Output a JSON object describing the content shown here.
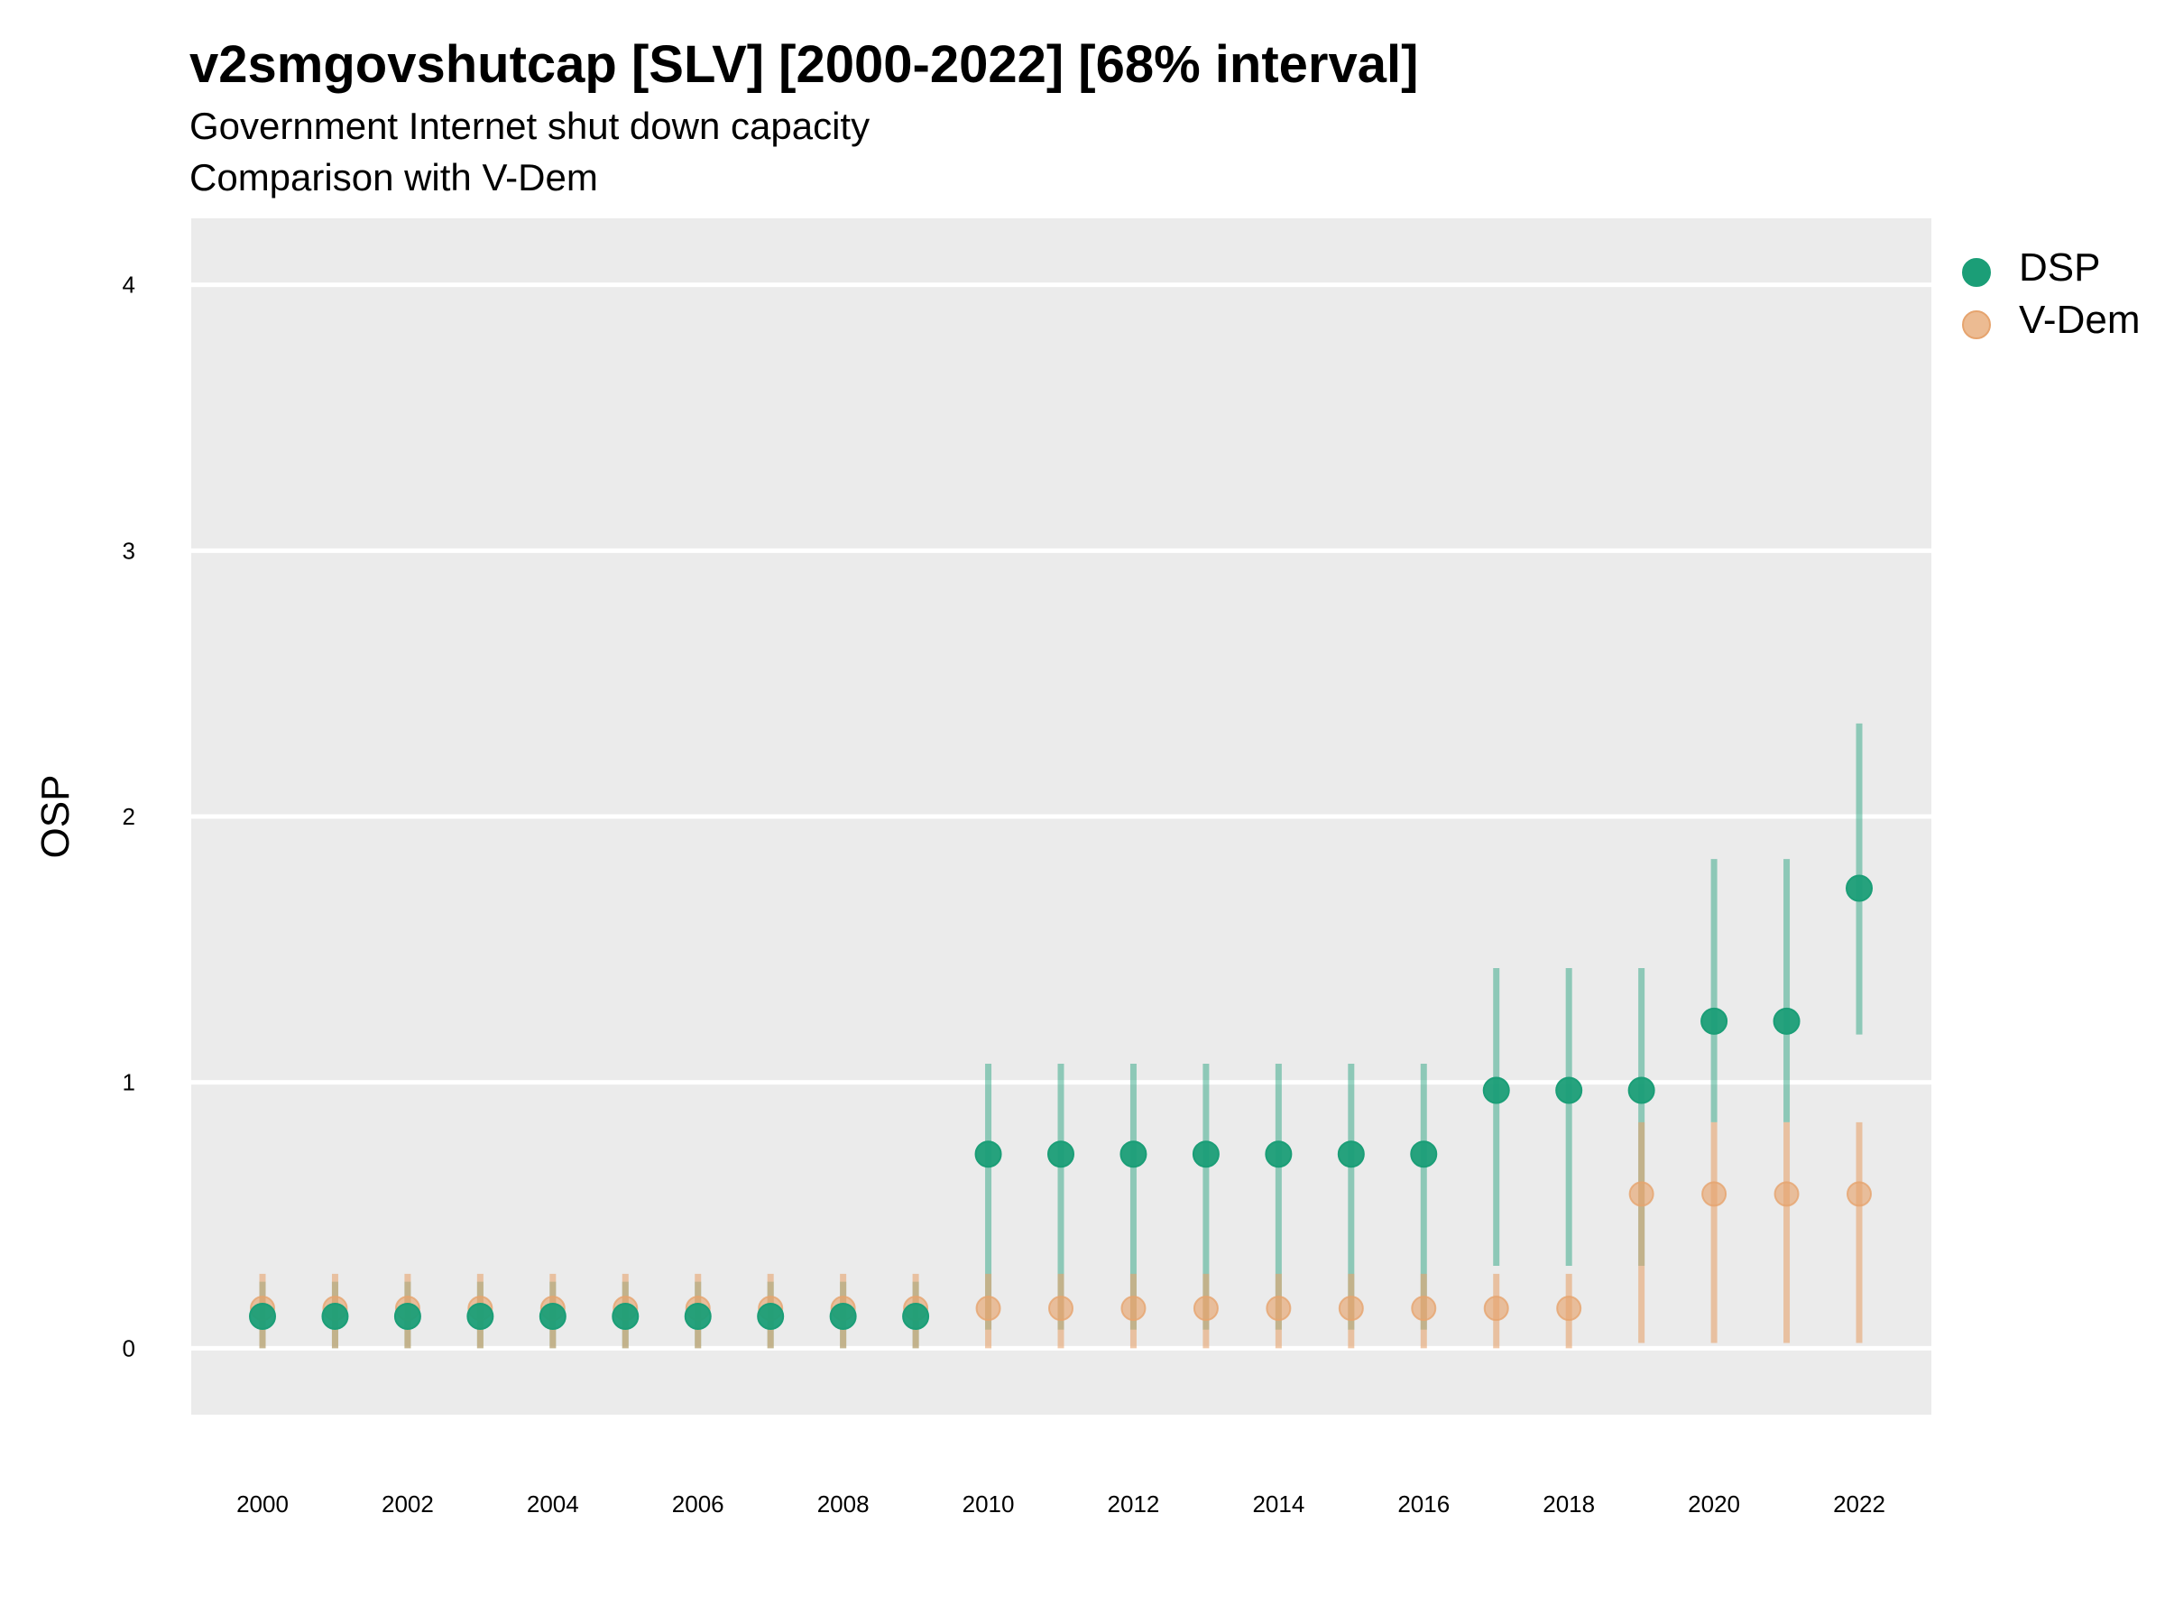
{
  "chart_data": {
    "type": "scatter",
    "title": "v2smgovshutcap [SLV] [2000-2022] [68% interval]",
    "subtitle_lines": [
      "Government Internet shut down capacity",
      "Comparison with V-Dem"
    ],
    "ylabel": "OSP",
    "xlabel": "",
    "ylim": [
      -0.25,
      4.25
    ],
    "y_ticks": [
      "0",
      "1",
      "2",
      "3",
      "4"
    ],
    "x_tick_labels": [
      "2000",
      "2002",
      "2004",
      "2006",
      "2008",
      "2010",
      "2012",
      "2014",
      "2016",
      "2018",
      "2020",
      "2022"
    ],
    "x_years": [
      2000,
      2001,
      2002,
      2003,
      2004,
      2005,
      2006,
      2007,
      2008,
      2009,
      2010,
      2011,
      2012,
      2013,
      2014,
      2015,
      2016,
      2017,
      2018,
      2019,
      2020,
      2021,
      2022
    ],
    "grid": true,
    "legend_position": "right",
    "series": [
      {
        "name": "DSP",
        "color": "#1b9e77",
        "values": [
          0.12,
          0.12,
          0.12,
          0.12,
          0.12,
          0.12,
          0.12,
          0.12,
          0.12,
          0.12,
          0.73,
          0.73,
          0.73,
          0.73,
          0.73,
          0.73,
          0.73,
          0.97,
          0.97,
          0.97,
          1.23,
          1.23,
          1.73
        ],
        "lower": [
          0.0,
          0.0,
          0.0,
          0.0,
          0.0,
          0.0,
          0.0,
          0.0,
          0.0,
          0.0,
          0.07,
          0.07,
          0.07,
          0.07,
          0.07,
          0.07,
          0.07,
          0.31,
          0.31,
          0.31,
          0.85,
          0.85,
          1.18
        ],
        "upper": [
          0.25,
          0.25,
          0.25,
          0.25,
          0.25,
          0.25,
          0.25,
          0.25,
          0.25,
          0.25,
          1.07,
          1.07,
          1.07,
          1.07,
          1.07,
          1.07,
          1.07,
          1.43,
          1.43,
          1.43,
          1.84,
          1.84,
          2.35
        ]
      },
      {
        "name": "V-Dem",
        "color": "#e6a46e",
        "values": [
          0.15,
          0.15,
          0.15,
          0.15,
          0.15,
          0.15,
          0.15,
          0.15,
          0.15,
          0.15,
          0.15,
          0.15,
          0.15,
          0.15,
          0.15,
          0.15,
          0.15,
          0.15,
          0.15,
          0.58,
          0.58,
          0.58,
          0.58
        ],
        "lower": [
          0.0,
          0.0,
          0.0,
          0.0,
          0.0,
          0.0,
          0.0,
          0.0,
          0.0,
          0.0,
          0.0,
          0.0,
          0.0,
          0.0,
          0.0,
          0.0,
          0.0,
          0.0,
          0.0,
          0.02,
          0.02,
          0.02,
          0.02
        ],
        "upper": [
          0.28,
          0.28,
          0.28,
          0.28,
          0.28,
          0.28,
          0.28,
          0.28,
          0.28,
          0.28,
          0.28,
          0.28,
          0.28,
          0.28,
          0.28,
          0.28,
          0.28,
          0.28,
          0.28,
          0.85,
          0.85,
          0.85,
          0.85
        ]
      }
    ]
  }
}
